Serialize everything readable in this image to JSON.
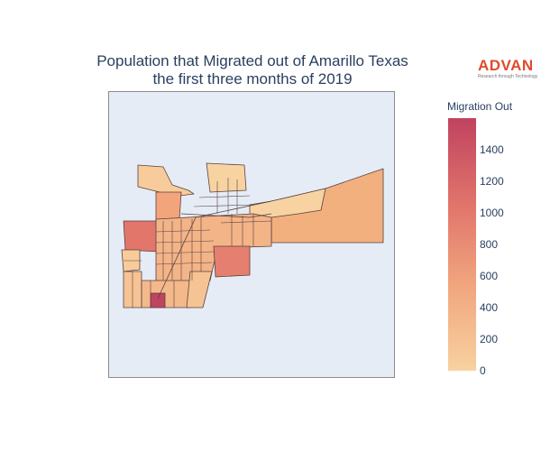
{
  "title_line1": "Population that Migrated out of Amarillo Texas",
  "title_line2": "the first three months of 2019",
  "logo": {
    "word": "ADVAN",
    "tagline": "Research through Technology"
  },
  "colorbar": {
    "title": "Migration Out",
    "min": 0,
    "max": 1600,
    "ticks": [
      "0",
      "200",
      "400",
      "600",
      "800",
      "1000",
      "1200",
      "1400"
    ],
    "colorscale": [
      "#f8d1a0",
      "#f1a67e",
      "#e0736a",
      "#c0435f"
    ]
  },
  "map": {
    "background": "#e5ecf6",
    "border_color": "#5a3f3f"
  }
}
